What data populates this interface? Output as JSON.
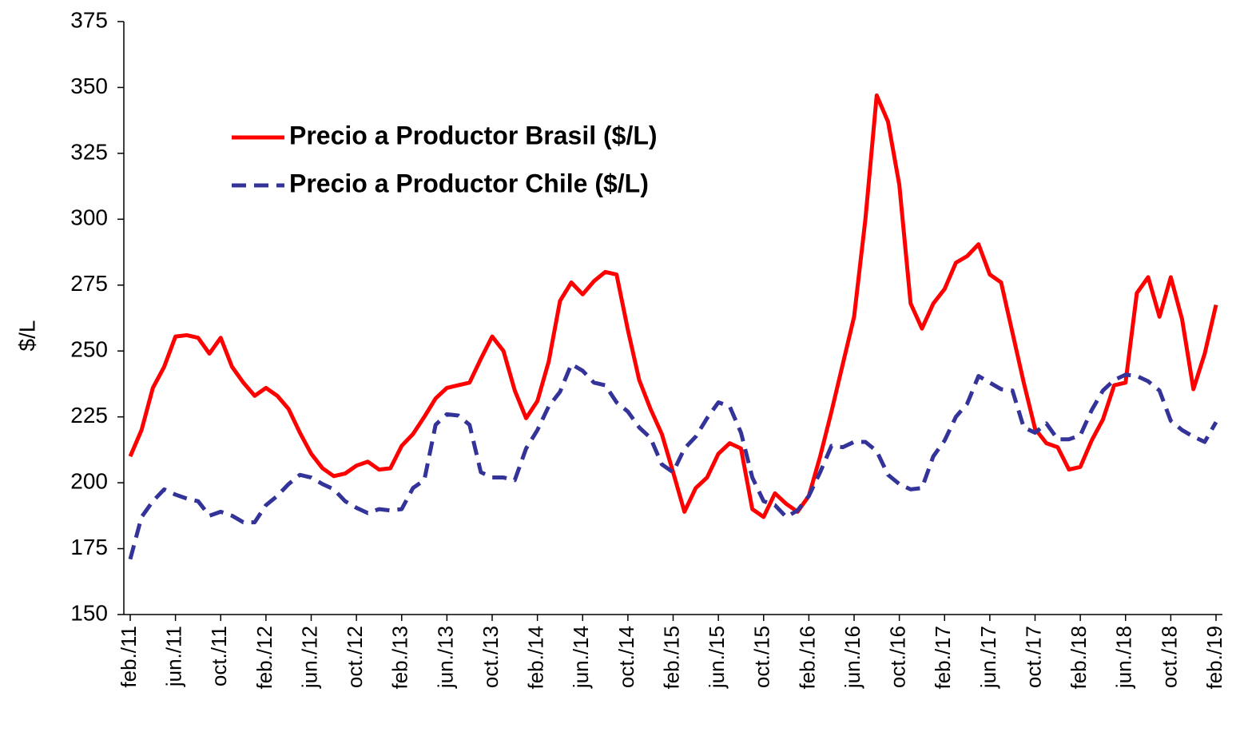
{
  "chart_data": {
    "type": "line",
    "ylabel": "$/L",
    "categories": [
      "feb./11",
      null,
      null,
      null,
      "jun./11",
      null,
      null,
      null,
      "oct./11",
      null,
      null,
      null,
      "feb./12",
      null,
      null,
      null,
      "jun./12",
      null,
      null,
      null,
      "oct./12",
      null,
      null,
      null,
      "feb./13",
      null,
      null,
      null,
      "jun./13",
      null,
      null,
      null,
      "oct./13",
      null,
      null,
      null,
      "feb./14",
      null,
      null,
      null,
      "jun./14",
      null,
      null,
      null,
      "oct./14",
      null,
      null,
      null,
      "feb./15",
      null,
      null,
      null,
      "jun./15",
      null,
      null,
      null,
      "oct./15",
      null,
      null,
      null,
      "feb./16",
      null,
      null,
      null,
      "jun./16",
      null,
      null,
      null,
      "oct./16",
      null,
      null,
      null,
      "feb./17",
      null,
      null,
      null,
      "jun./17",
      null,
      null,
      null,
      "oct./17",
      null,
      null,
      null,
      "feb./18",
      null,
      null,
      null,
      "jun./18",
      null,
      null,
      null,
      "oct./18",
      null,
      null,
      null,
      "feb./19"
    ],
    "series": [
      {
        "name": "Precio a Productor Brasil ($/L)",
        "color": "#ff0000",
        "linestyle": "solid",
        "values": [
          210,
          220,
          236,
          244,
          255.5,
          256,
          255,
          249,
          255,
          244,
          238,
          233,
          236,
          233,
          228,
          219,
          211,
          205.5,
          202.5,
          203.5,
          206.5,
          208,
          205,
          205.5,
          214,
          218.5,
          225,
          232,
          236,
          237,
          238,
          247,
          255.5,
          250,
          235,
          224.5,
          231,
          246,
          269,
          276,
          271.5,
          276.5,
          280,
          279,
          258,
          239,
          228,
          218.5,
          204,
          189,
          198,
          202,
          211,
          215,
          213,
          190,
          187,
          196,
          192,
          189,
          195,
          210,
          227,
          245,
          263,
          300,
          347,
          337,
          313,
          268,
          258.5,
          268,
          273.5,
          283.5,
          286,
          290.5,
          279,
          276,
          257,
          238,
          220.5,
          215,
          213.5,
          205,
          206,
          216,
          224,
          237,
          238,
          272,
          278,
          263,
          278,
          262,
          235.5,
          249,
          267.5
        ]
      },
      {
        "name": "Precio a Productor Chile ($/L)",
        "color": "#333399",
        "linestyle": "dashed",
        "values": [
          171,
          187,
          193,
          197.5,
          195.5,
          194,
          193,
          187.5,
          189,
          187.5,
          185,
          185,
          191.5,
          195,
          199.5,
          203,
          202,
          199.5,
          197.5,
          193,
          190.5,
          188.5,
          190,
          189.5,
          190,
          198,
          201,
          222,
          226,
          225.5,
          222,
          204,
          202,
          202,
          201,
          213,
          220,
          229,
          234.5,
          245,
          242.5,
          238,
          237,
          230.5,
          227,
          221,
          217,
          207,
          204,
          213,
          217.5,
          224.5,
          230.5,
          229,
          219,
          202,
          193,
          191.5,
          187,
          189.5,
          195,
          204,
          214,
          213.5,
          215.5,
          215.5,
          212,
          203,
          199.5,
          197.5,
          198,
          210,
          216,
          225,
          230,
          240.5,
          238,
          235.5,
          235,
          221,
          219,
          222.5,
          216.5,
          216.5,
          218,
          227.5,
          235,
          239,
          241,
          240.5,
          238.5,
          235,
          223.5,
          220,
          217.5,
          215.5,
          223
        ]
      }
    ],
    "ylim": [
      150,
      375
    ],
    "yticks": [
      150,
      175,
      200,
      225,
      250,
      275,
      300,
      325,
      350,
      375
    ],
    "grid": false,
    "legend": "upper left"
  }
}
